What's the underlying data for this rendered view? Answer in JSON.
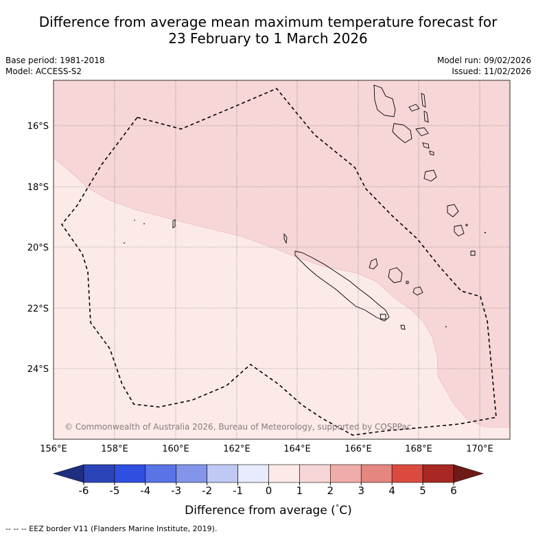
{
  "chart": {
    "title_line1": "Difference from average mean maximum temperature forecast for",
    "title_line2": "23 February to 1 March 2026",
    "base_period": "Base period: 1981-2018",
    "model": "Model: ACCESS-S2",
    "model_run": "Model run: 09/02/2026",
    "issued": "Issued: 11/02/2026",
    "copyright": "© Commonwealth of Australia 2026, Bureau of Meteorology, supported by COSPPac",
    "eez_note": "--  --  -- EEZ border V11 (Flanders Marine Institute, 2019)."
  },
  "chart_data": {
    "type": "heatmap",
    "title": "Difference from average mean maximum temperature forecast for 23 February to 1 March 2026",
    "map_extent": {
      "lon": [
        156,
        171
      ],
      "lat": [
        -26.3,
        -14.5
      ]
    },
    "x_ticks": [
      "156°E",
      "158°E",
      "160°E",
      "162°E",
      "164°E",
      "166°E",
      "168°E",
      "170°E"
    ],
    "y_ticks": [
      "16°S",
      "18°S",
      "20°S",
      "22°S",
      "24°S"
    ],
    "colorbar": {
      "label": "Difference from average (°C)",
      "label_prefix": "Difference from average (",
      "label_unit": "C)",
      "degree": "°",
      "ticks": [
        "-6",
        "-5",
        "-4",
        "-3",
        "-2",
        "-1",
        "0",
        "1",
        "2",
        "3",
        "4",
        "5",
        "6"
      ],
      "bins": [
        {
          "range": "< -6",
          "color": "#1f2f80"
        },
        {
          "range": "-6 to -5",
          "color": "#2b44b8"
        },
        {
          "range": "-5 to -4",
          "color": "#2f4fe0"
        },
        {
          "range": "-4 to -3",
          "color": "#5a74e6"
        },
        {
          "range": "-3 to -2",
          "color": "#8295ea"
        },
        {
          "range": "-2 to -1",
          "color": "#c0c8f4"
        },
        {
          "range": "-1 to 0",
          "color": "#e7ebfb"
        },
        {
          "range": "0 to 1",
          "color": "#fceae9"
        },
        {
          "range": "1 to 2",
          "color": "#f6d6d6"
        },
        {
          "range": "2 to 3",
          "color": "#efaca8"
        },
        {
          "range": "3 to 4",
          "color": "#e58680"
        },
        {
          "range": "4 to 5",
          "color": "#dc4a3f"
        },
        {
          "range": "5 to 6",
          "color": "#a82824"
        },
        {
          "range": "> 6",
          "color": "#701a17"
        }
      ]
    },
    "regions": [
      {
        "name": "warm-1-to-2",
        "category": "1 to 2",
        "area": "north-east"
      },
      {
        "name": "warm-0-to-1",
        "category": "0 to 1",
        "area": "south-west"
      }
    ],
    "eez_label": "EEZ border V11 (Flanders Marine Institute, 2019)."
  }
}
